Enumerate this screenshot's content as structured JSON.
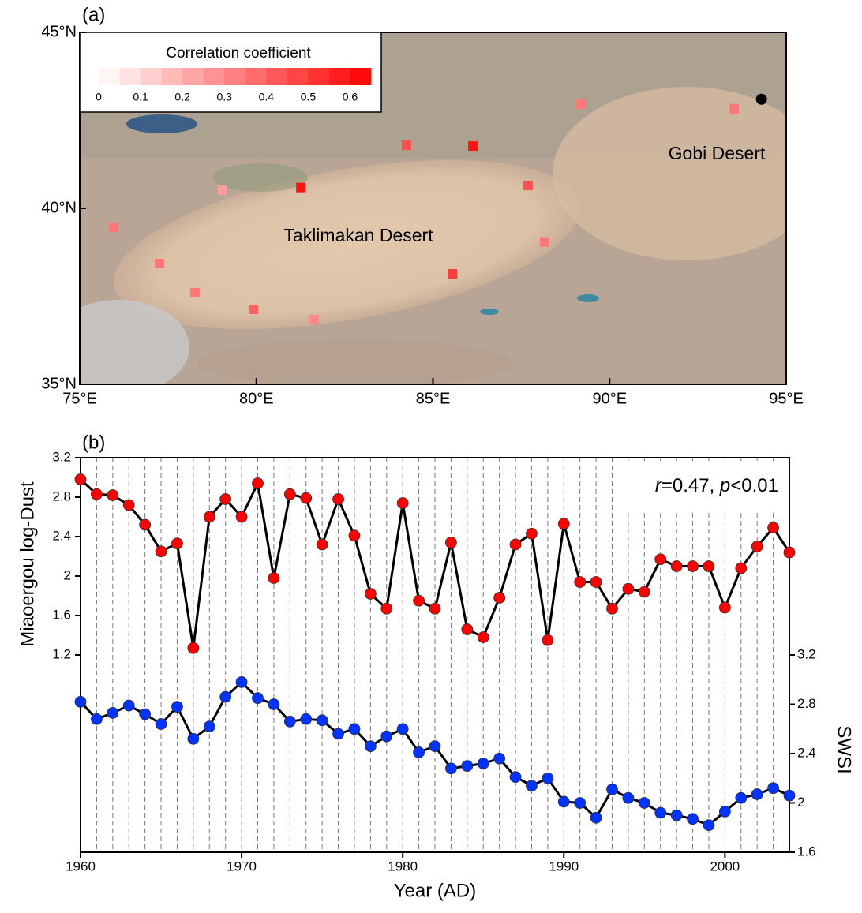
{
  "chart_data": [
    {
      "type": "map",
      "title": "(a)",
      "xlim": [
        75,
        95
      ],
      "ylim": [
        35,
        45
      ],
      "xticks": [
        {
          "value": 75,
          "label": "75°E"
        },
        {
          "value": 80,
          "label": "80°E"
        },
        {
          "value": 85,
          "label": "85°E"
        },
        {
          "value": 90,
          "label": "90°E"
        },
        {
          "value": 95,
          "label": "95°E"
        }
      ],
      "yticks": [
        {
          "value": 35,
          "label": "35°N"
        },
        {
          "value": 40,
          "label": "40°N"
        },
        {
          "value": 45,
          "label": "45°N"
        }
      ],
      "annotations": [
        "Taklimakan Desert",
        "Gobi Desert"
      ],
      "x": [
        75.96,
        77.26,
        78.26,
        79.04,
        79.92,
        81.26,
        81.64,
        84.25,
        85.55,
        86.13,
        87.69,
        88.16,
        89.19,
        93.53
      ],
      "y": [
        39.46,
        38.43,
        37.6,
        40.52,
        37.13,
        40.59,
        36.84,
        41.79,
        38.14,
        41.77,
        40.65,
        39.04,
        42.96,
        42.83
      ],
      "values": [
        0.35,
        0.35,
        0.35,
        0.25,
        0.4,
        0.6,
        0.3,
        0.45,
        0.5,
        0.6,
        0.45,
        0.35,
        0.35,
        0.35
      ],
      "site": {
        "x": 94.3,
        "y": 43.1,
        "color": "#000000"
      },
      "colorbar": {
        "title": "Correlation coefficient",
        "clim": [
          0,
          0.65
        ],
        "colors": [
          "#ffffff",
          "#ff0000"
        ],
        "ticks": [
          0,
          0.1,
          0.2,
          0.3,
          0.4,
          0.5,
          0.6
        ]
      }
    },
    {
      "type": "line",
      "title": "(b)",
      "xlabel": "Year (AD)",
      "ylabel": "Miaoergou log-Dust",
      "y2label": "SWSI",
      "annotation": [
        "r",
        "=0.47, ",
        "p",
        "<0.01"
      ],
      "xlim": [
        1960,
        2004
      ],
      "xticks": [
        1960,
        1970,
        1980,
        1990,
        2000
      ],
      "ylim": [
        -0.8,
        3.2
      ],
      "yticks": [
        1.2,
        1.6,
        2,
        2.4,
        2.8,
        3.2
      ],
      "y2lim": [
        1.6,
        4.8
      ],
      "y2ticks": [
        1.6,
        2,
        2.4,
        2.8,
        3.2
      ],
      "vgrid": true,
      "line_color": "#000000",
      "x": [
        1960,
        1961,
        1962,
        1963,
        1964,
        1965,
        1966,
        1967,
        1968,
        1969,
        1970,
        1971,
        1972,
        1973,
        1974,
        1975,
        1976,
        1977,
        1978,
        1979,
        1980,
        1981,
        1982,
        1983,
        1984,
        1985,
        1986,
        1987,
        1988,
        1989,
        1990,
        1991,
        1992,
        1993,
        1994,
        1995,
        1996,
        1997,
        1998,
        1999,
        2000,
        2001,
        2002,
        2003,
        2004
      ],
      "series": [
        {
          "name": "Miaoergou log-Dust",
          "color": "#ff0000",
          "axis": "y",
          "values": [
            2.98,
            2.83,
            2.82,
            2.72,
            2.52,
            2.25,
            2.33,
            1.27,
            2.6,
            2.78,
            2.6,
            2.94,
            1.98,
            2.83,
            2.79,
            2.32,
            2.78,
            2.41,
            1.82,
            1.67,
            2.74,
            1.75,
            1.67,
            2.34,
            1.46,
            1.38,
            1.78,
            2.32,
            2.43,
            1.35,
            2.53,
            1.94,
            1.94,
            1.67,
            1.87,
            1.84,
            2.17,
            2.1,
            2.1,
            2.1,
            1.68,
            2.08,
            2.3,
            2.49,
            2.24
          ]
        },
        {
          "name": "SWSI",
          "color": "#0033ff",
          "axis": "y2",
          "values": [
            2.82,
            2.68,
            2.73,
            2.79,
            2.72,
            2.64,
            2.78,
            2.52,
            2.62,
            2.86,
            2.98,
            2.85,
            2.8,
            2.66,
            2.68,
            2.67,
            2.56,
            2.6,
            2.46,
            2.54,
            2.6,
            2.41,
            2.46,
            2.28,
            2.3,
            2.32,
            2.36,
            2.21,
            2.14,
            2.2,
            2.01,
            2.0,
            1.88,
            2.11,
            2.04,
            2.0,
            1.92,
            1.9,
            1.87,
            1.82,
            1.93,
            2.04,
            2.07,
            2.12,
            2.06
          ]
        }
      ]
    }
  ]
}
